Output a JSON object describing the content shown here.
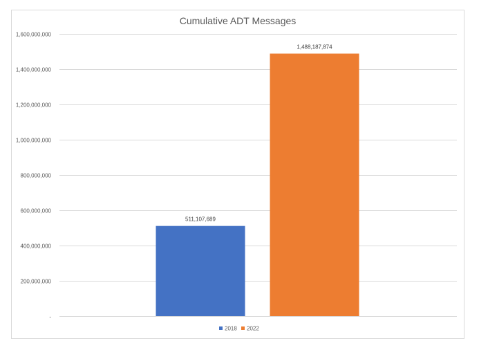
{
  "chart_data": {
    "type": "bar",
    "title": "Cumulative ADT Messages",
    "xlabel": "",
    "ylabel": "",
    "series": [
      {
        "name": "2018",
        "values": [
          511107689
        ],
        "label": "511,107,689",
        "color": "#4472c4"
      },
      {
        "name": "2022",
        "values": [
          1488187874
        ],
        "label": "1,488,187,874",
        "color": "#ed7d31"
      }
    ],
    "ylim": [
      0,
      1600000000
    ],
    "yticks": [
      {
        "value": 0,
        "label": "-"
      },
      {
        "value": 200000000,
        "label": "200,000,000"
      },
      {
        "value": 400000000,
        "label": "400,000,000"
      },
      {
        "value": 600000000,
        "label": "600,000,000"
      },
      {
        "value": 800000000,
        "label": "800,000,000"
      },
      {
        "value": 1000000000,
        "label": "1,000,000,000"
      },
      {
        "value": 1200000000,
        "label": "1,200,000,000"
      },
      {
        "value": 1400000000,
        "label": "1,400,000,000"
      },
      {
        "value": 1600000000,
        "label": "1,600,000,000"
      }
    ],
    "grid": true,
    "legend_position": "bottom"
  }
}
